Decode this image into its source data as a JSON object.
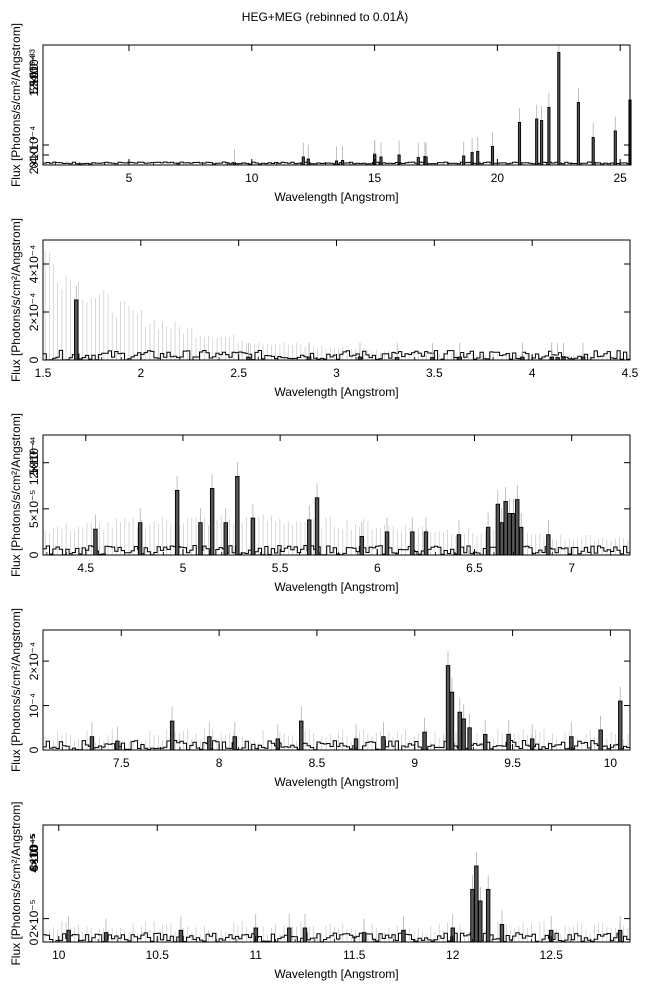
{
  "title": "HEG+MEG (rebinned to 0.01Å)",
  "chart_data": [
    {
      "type": "line",
      "xlabel": "Wavelength [Angstrom]",
      "ylabel": "Flux [Photons/s/cm²/Angstrom]",
      "xlim": [
        1.5,
        25.4
      ],
      "ylim": [
        0,
        0.0024
      ],
      "xticks": [
        5,
        10,
        15,
        20,
        25
      ],
      "xtick_labels": [
        "5",
        "10",
        "15",
        "20",
        "25"
      ],
      "yticks": [
        0,
        0.0002,
        0.0004
      ],
      "ytick_labels": [
        "0",
        "2×10⁻⁴",
        "4×10⁻⁴"
      ],
      "yticks_overlap_labels": [
        "5×10⁻⁴",
        "10⁻³",
        "1.5×10⁻³",
        "2×10⁻³"
      ],
      "yticks_overlap_values": [
        0.0005,
        0.001,
        0.0015,
        0.002
      ],
      "series": [
        {
          "x": [
            9.3,
            12.1,
            12.3,
            13.45,
            13.7,
            15.0,
            15.01,
            15.26,
            16.0,
            16.78,
            17.05,
            17.1,
            18.63,
            18.97,
            19.2,
            19.8,
            20.9,
            21.6,
            21.8,
            22.1,
            22.5,
            23.3,
            23.9,
            24.8,
            25.4
          ],
          "values": [
            3e-05,
            0.00016,
            0.00012,
            8e-05,
            9e-05,
            0.00022,
            0.00019,
            0.00016,
            0.0002,
            0.00015,
            0.00017,
            0.00016,
            0.00018,
            0.00025,
            0.00027,
            0.00037,
            0.00085,
            0.00092,
            0.00089,
            0.00115,
            0.00225,
            0.00125,
            0.00055,
            0.00068,
            0.0013
          ]
        }
      ]
    },
    {
      "type": "line",
      "xlabel": "Wavelength [Angstrom]",
      "ylabel": "Flux [Photons/s/cm²/Angstrom]",
      "xlim": [
        1.5,
        4.5
      ],
      "ylim": [
        0,
        0.0005
      ],
      "xticks": [
        1.5,
        2,
        2.5,
        3,
        3.5,
        4,
        4.5
      ],
      "xtick_labels": [
        "1.5",
        "2",
        "2.5",
        "3",
        "3.5",
        "4",
        "4.5"
      ],
      "yticks": [
        0,
        0.0002,
        0.0004
      ],
      "ytick_labels": [
        "0",
        "2×10⁻⁴",
        "4×10⁻⁴"
      ],
      "series": [
        {
          "x": [
            1.67,
            2.55,
            2.86,
            3.12,
            3.31,
            3.49,
            3.63,
            3.95,
            4.1,
            4.13,
            4.16,
            4.26
          ],
          "values": [
            0.00025,
            1.2e-05,
            1.2e-05,
            1.2e-05,
            1e-05,
            1e-05,
            1.2e-05,
            1.2e-05,
            1.2e-05,
            1e-05,
            1.2e-05,
            1.2e-05
          ]
        }
      ]
    },
    {
      "type": "line",
      "xlabel": "Wavelength [Angstrom]",
      "ylabel": "Flux [Photons/s/cm²/Angstrom]",
      "xlim": [
        4.28,
        7.3
      ],
      "ylim": [
        0,
        0.00013
      ],
      "xticks": [
        4.5,
        5,
        5.5,
        6,
        6.5,
        7
      ],
      "xtick_labels": [
        "4.5",
        "5",
        "5.5",
        "6",
        "6.5",
        "7"
      ],
      "yticks": [
        0,
        5e-05,
        0.0001
      ],
      "ytick_labels": [
        "0",
        "5×10⁻⁵",
        "10⁻⁴"
      ],
      "yticks_overlap_labels": [
        "1.5×10⁻⁴",
        "2×10⁻⁴"
      ],
      "yticks_overlap_values": [
        0.00015,
        0.0002
      ],
      "series": [
        {
          "x": [
            4.55,
            4.78,
            4.97,
            5.09,
            5.15,
            5.22,
            5.28,
            5.36,
            5.65,
            5.69,
            5.92,
            6.05,
            6.18,
            6.25,
            6.42,
            6.57,
            6.62,
            6.64,
            6.66,
            6.68,
            6.7,
            6.72,
            6.74,
            6.88
          ],
          "values": [
            2.8e-05,
            3.5e-05,
            7e-05,
            3.5e-05,
            7.2e-05,
            3.5e-05,
            8.5e-05,
            4e-05,
            3.8e-05,
            6.2e-05,
            2e-05,
            2.5e-05,
            2.5e-05,
            2.5e-05,
            2.2e-05,
            3e-05,
            5.5e-05,
            3.5e-05,
            5.8e-05,
            4.5e-05,
            4.5e-05,
            6e-05,
            3e-05,
            2.2e-05
          ]
        }
      ]
    },
    {
      "type": "line",
      "xlabel": "Wavelength [Angstrom]",
      "ylabel": "Flux [Photons/s/cm²/Angstrom]",
      "xlim": [
        7.1,
        10.1
      ],
      "ylim": [
        0,
        0.00027
      ],
      "xticks": [
        7.5,
        8,
        8.5,
        9,
        9.5,
        10
      ],
      "xtick_labels": [
        "7.5",
        "8",
        "8.5",
        "9",
        "9.5",
        "10"
      ],
      "yticks": [
        0,
        0.0001,
        0.0002
      ],
      "ytick_labels": [
        "0",
        "10⁻⁴",
        "2×10⁻⁴"
      ],
      "series": [
        {
          "x": [
            7.35,
            7.48,
            7.76,
            7.95,
            8.08,
            8.3,
            8.42,
            8.7,
            8.84,
            9.05,
            9.17,
            9.19,
            9.23,
            9.25,
            9.28,
            9.36,
            9.48,
            9.6,
            9.8,
            9.95,
            10.05
          ],
          "values": [
            3e-05,
            2e-05,
            6.5e-05,
            3e-05,
            3e-05,
            2.5e-05,
            6.5e-05,
            2.5e-05,
            3e-05,
            4e-05,
            0.00019,
            0.00013,
            8.5e-05,
            7e-05,
            5e-05,
            3.5e-05,
            3.5e-05,
            2.5e-05,
            3e-05,
            4.5e-05,
            0.00011
          ]
        }
      ]
    },
    {
      "type": "line",
      "xlabel": "Wavelength [Angstrom]",
      "ylabel": "Flux [Photons/s/cm²/Angstrom]",
      "xlim": [
        9.92,
        12.9
      ],
      "ylim": [
        0,
        0.0001
      ],
      "xticks": [
        10,
        10.5,
        11,
        11.5,
        12,
        12.5
      ],
      "xtick_labels": [
        "10",
        "10.5",
        "11",
        "11.5",
        "12",
        "12.5"
      ],
      "yticks": [
        0,
        2e-05
      ],
      "ytick_labels": [
        "0",
        "2×10⁻⁵"
      ],
      "yticks_overlap_labels": [
        "4×10⁻⁵",
        "6×10⁻⁵",
        "8×10⁻⁵",
        "10⁻⁴"
      ],
      "yticks_overlap_values": [
        4e-05,
        6e-05,
        8e-05,
        0.0001
      ],
      "series": [
        {
          "x": [
            10.05,
            10.24,
            10.62,
            11.0,
            11.17,
            11.25,
            11.55,
            11.75,
            12.0,
            12.1,
            12.12,
            12.14,
            12.18,
            12.25,
            12.5,
            12.85
          ],
          "values": [
            1e-05,
            8e-06,
            1e-05,
            1.2e-05,
            1.2e-05,
            1.2e-05,
            8e-06,
            1e-05,
            1.2e-05,
            4.5e-05,
            6.5e-05,
            3.5e-05,
            4.5e-05,
            1.5e-05,
            1e-05,
            1e-05
          ]
        }
      ]
    }
  ]
}
